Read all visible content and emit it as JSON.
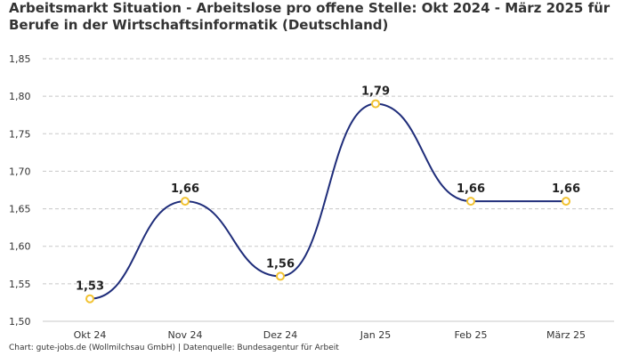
{
  "chart_data": {
    "type": "line",
    "title_line1": "Arbeitsmarkt Situation - Arbeitslose pro offene Stelle: Okt 2024 - März 2025 für",
    "title_line2": "Berufe in der Wirtschaftsinformatik (Deutschland)",
    "source": "Chart: gute-jobs.de (Wollmilchsau GmbH) | Datenquelle: Bundesagentur für Arbeit",
    "categories": [
      "Okt 24",
      "Nov 24",
      "Dez 24",
      "Jan 25",
      "Feb 25",
      "März 25"
    ],
    "values": [
      1.53,
      1.66,
      1.56,
      1.79,
      1.66,
      1.66
    ],
    "value_labels": [
      "1,53",
      "1,66",
      "1,56",
      "1,79",
      "1,66",
      "1,66"
    ],
    "yticks": [
      1.5,
      1.55,
      1.6,
      1.65,
      1.7,
      1.75,
      1.8,
      1.85
    ],
    "ytick_labels": [
      "1,50",
      "1,55",
      "1,60",
      "1,65",
      "1,70",
      "1,75",
      "1,80",
      "1,85"
    ],
    "ylim": [
      1.5,
      1.85
    ],
    "grid": true,
    "line_color": "#1f2d7a",
    "marker_color": "#f2c230"
  }
}
